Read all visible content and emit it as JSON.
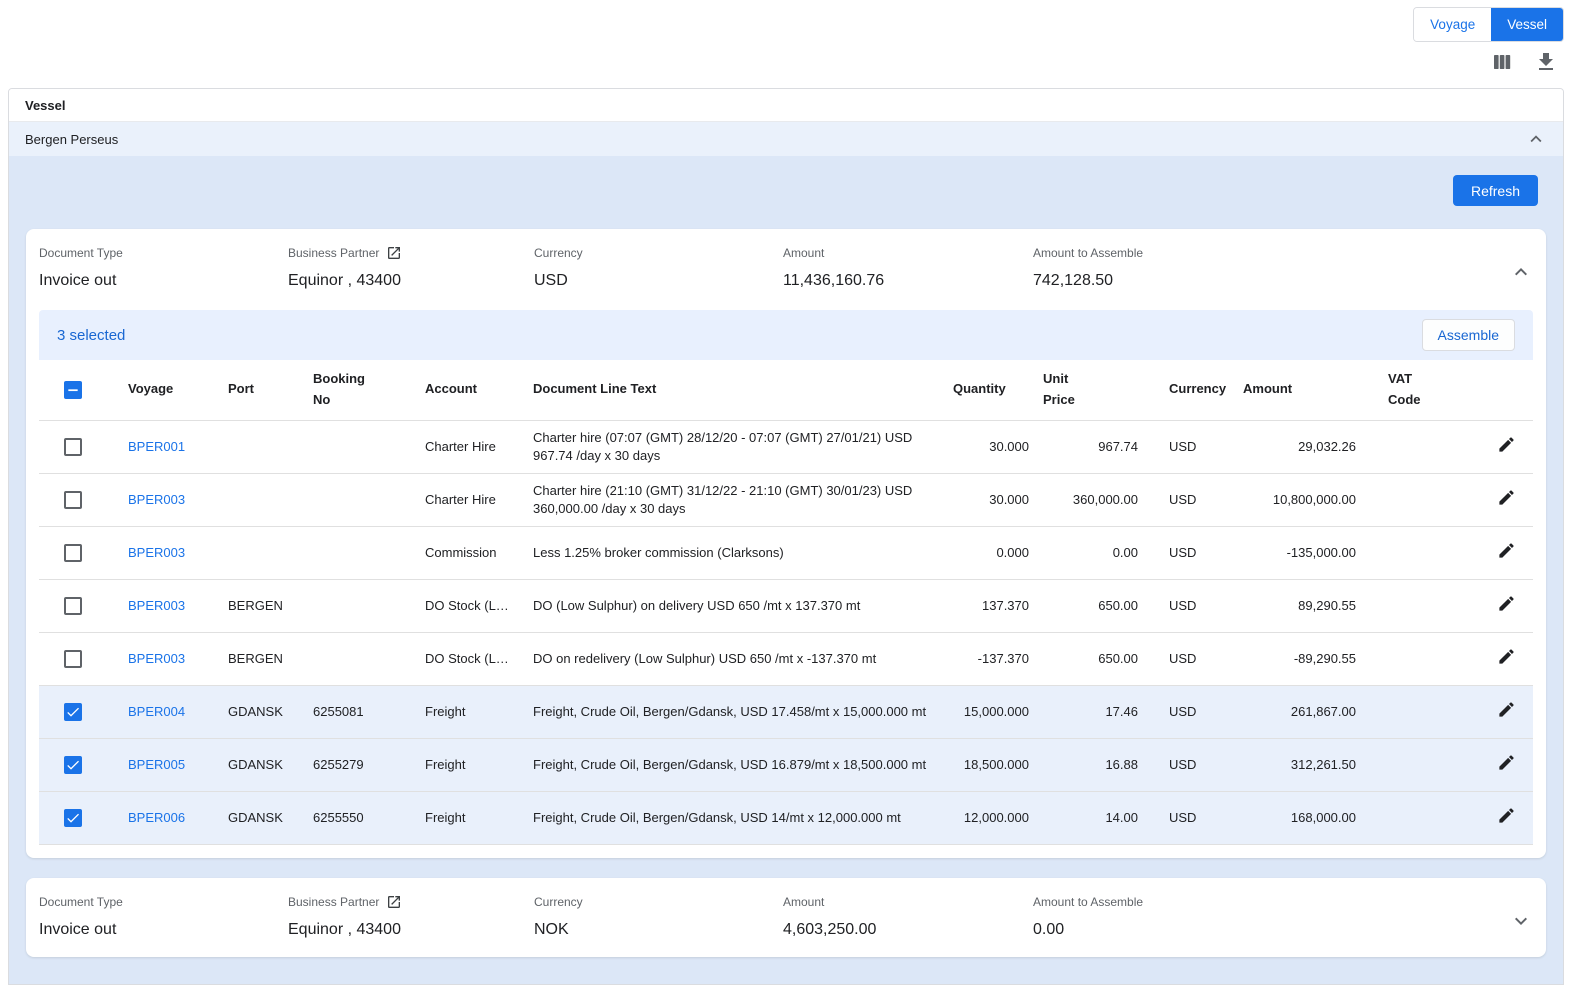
{
  "colors": {
    "accent": "#1a73e8",
    "link": "#1a73e8",
    "section_bg": "#dce7f7",
    "group_row_bg": "#eaf1fb",
    "toolbar_bg": "#e8f0fe",
    "selected_row_bg": "#e9f0fb"
  },
  "view_toggle": {
    "voyage": "Voyage",
    "vessel": "Vessel"
  },
  "panel": {
    "title": "Vessel",
    "vessel_name": "Bergen Perseus",
    "refresh_label": "Refresh"
  },
  "labels": {
    "document_type": "Document Type",
    "business_partner": "Business Partner",
    "currency": "Currency",
    "amount": "Amount",
    "amount_to_assemble": "Amount to Assemble"
  },
  "doc_usd": {
    "document_type": "Invoice out",
    "business_partner": "Equinor , 43400",
    "currency": "USD",
    "amount": "11,436,160.76",
    "amount_to_assemble": "742,128.50",
    "selection_label": "3 selected",
    "assemble_label": "Assemble",
    "columns": [
      "Voyage",
      "Port",
      "Booking\nNo",
      "Account",
      "Document Line Text",
      "Quantity",
      "Unit\nPrice",
      "Currency",
      "Amount",
      "VAT\nCode"
    ],
    "rows": [
      {
        "selected": false,
        "voyage": "BPER001",
        "port": "",
        "booking_no": "",
        "account": "Charter Hire",
        "text": "Charter hire (07:07 (GMT) 28/12/20 - 07:07 (GMT) 27/01/21) USD 967.74 /day x 30 days",
        "quantity": "30.000",
        "unit_price": "967.74",
        "currency": "USD",
        "amount": "29,032.26",
        "vat_code": ""
      },
      {
        "selected": false,
        "voyage": "BPER003",
        "port": "",
        "booking_no": "",
        "account": "Charter Hire",
        "text": "Charter hire (21:10 (GMT) 31/12/22 - 21:10 (GMT) 30/01/23) USD 360,000.00 /day x 30 days",
        "quantity": "30.000",
        "unit_price": "360,000.00",
        "currency": "USD",
        "amount": "10,800,000.00",
        "vat_code": ""
      },
      {
        "selected": false,
        "voyage": "BPER003",
        "port": "",
        "booking_no": "",
        "account": "Commission",
        "text": "Less 1.25% broker commission (Clarksons)",
        "quantity": "0.000",
        "unit_price": "0.00",
        "currency": "USD",
        "amount": "-135,000.00",
        "vat_code": ""
      },
      {
        "selected": false,
        "voyage": "BPER003",
        "port": "BERGEN",
        "booking_no": "",
        "account": "DO Stock (L…",
        "text": "DO (Low Sulphur) on delivery USD 650 /mt x 137.370 mt",
        "quantity": "137.370",
        "unit_price": "650.00",
        "currency": "USD",
        "amount": "89,290.55",
        "vat_code": ""
      },
      {
        "selected": false,
        "voyage": "BPER003",
        "port": "BERGEN",
        "booking_no": "",
        "account": "DO Stock (L…",
        "text": "DO on redelivery (Low Sulphur) USD 650 /mt x -137.370 mt",
        "quantity": "-137.370",
        "unit_price": "650.00",
        "currency": "USD",
        "amount": "-89,290.55",
        "vat_code": ""
      },
      {
        "selected": true,
        "voyage": "BPER004",
        "port": "GDANSK",
        "booking_no": "6255081",
        "account": "Freight",
        "text": "Freight, Crude Oil, Bergen/Gdansk, USD 17.458/mt x 15,000.000 mt",
        "quantity": "15,000.000",
        "unit_price": "17.46",
        "currency": "USD",
        "amount": "261,867.00",
        "vat_code": ""
      },
      {
        "selected": true,
        "voyage": "BPER005",
        "port": "GDANSK",
        "booking_no": "6255279",
        "account": "Freight",
        "text": "Freight, Crude Oil, Bergen/Gdansk, USD 16.879/mt x 18,500.000 mt",
        "quantity": "18,500.000",
        "unit_price": "16.88",
        "currency": "USD",
        "amount": "312,261.50",
        "vat_code": ""
      },
      {
        "selected": true,
        "voyage": "BPER006",
        "port": "GDANSK",
        "booking_no": "6255550",
        "account": "Freight",
        "text": "Freight, Crude Oil, Bergen/Gdansk, USD 14/mt x 12,000.000 mt",
        "quantity": "12,000.000",
        "unit_price": "14.00",
        "currency": "USD",
        "amount": "168,000.00",
        "vat_code": ""
      }
    ]
  },
  "doc_nok": {
    "document_type": "Invoice out",
    "business_partner": "Equinor , 43400",
    "currency": "NOK",
    "amount": "4,603,250.00",
    "amount_to_assemble": "0.00"
  }
}
